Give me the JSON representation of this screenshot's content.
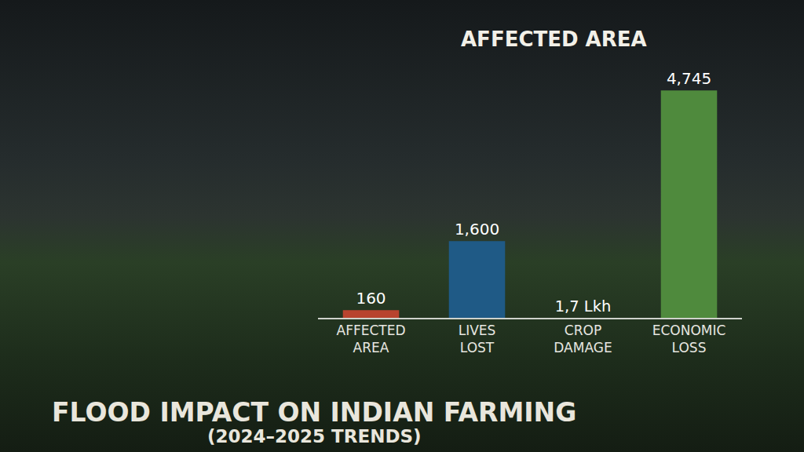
{
  "chart_data": {
    "type": "bar",
    "title": "FLOOD IMPACT ON INDIAN FARMING",
    "subtitle": "(2024–2025 TRENDS)",
    "annotations": [
      {
        "text": "AFFECTED AREA"
      }
    ],
    "categories": [
      "AFFECTED AREA",
      "LIVES LOST",
      "CROP DAMAGE",
      "ECONOMIC LOSS"
    ],
    "values": [
      160,
      1600,
      1.7,
      4745
    ],
    "value_labels": [
      "160",
      "1,600",
      "1,7 Lkh",
      "4,745"
    ],
    "colors": [
      "#b8432f",
      "#1f5a86",
      "#e2aa3c",
      "#4f8a3d"
    ],
    "data_labels": true,
    "tick_labels": "x",
    "grid": false
  }
}
